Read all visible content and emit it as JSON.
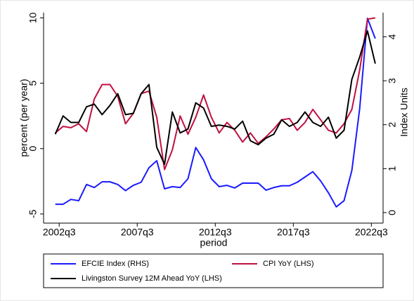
{
  "chart_data": {
    "type": "line",
    "x_label": "period",
    "y_label": "percent (per year)",
    "y2_label": "Index Units",
    "x": [
      169,
      171,
      173,
      175,
      177,
      179,
      181,
      183,
      185,
      187,
      189,
      191,
      193,
      195,
      197,
      199,
      201,
      203,
      205,
      207,
      209,
      211,
      213,
      215,
      217,
      219,
      221,
      223,
      225,
      227,
      229,
      231,
      233,
      235,
      237,
      239,
      241,
      243,
      245,
      247,
      249,
      251
    ],
    "xlim": [
      166,
      253
    ],
    "xticks": [
      {
        "value": 170,
        "label": "2002q3"
      },
      {
        "value": 190,
        "label": "2007q3"
      },
      {
        "value": 210,
        "label": "2012q3"
      },
      {
        "value": 230,
        "label": "2017q3"
      },
      {
        "value": 250,
        "label": "2022q3"
      }
    ],
    "ylim": [
      -5.7,
      10.4
    ],
    "yticks": [
      -5,
      0,
      5,
      10
    ],
    "y2lim": [
      -0.24,
      4.55
    ],
    "y2ticks": [
      0,
      1,
      2,
      3,
      4
    ],
    "legend": "bottom",
    "series": [
      {
        "name": "EFCIE Index (RHS)",
        "color": "#1a1aff",
        "axis": "y2",
        "values": [
          0.19,
          0.19,
          0.3,
          0.27,
          0.64,
          0.57,
          0.7,
          0.7,
          0.64,
          0.5,
          0.62,
          0.69,
          1.02,
          1.18,
          0.54,
          0.59,
          0.57,
          0.77,
          1.48,
          1.2,
          0.77,
          0.59,
          0.62,
          0.56,
          0.67,
          0.67,
          0.67,
          0.51,
          0.57,
          0.61,
          0.61,
          0.69,
          0.81,
          0.93,
          0.72,
          0.45,
          0.13,
          0.27,
          0.96,
          2.36,
          4.42,
          3.96
        ]
      },
      {
        "name": "CPI YoY (LHS)",
        "color": "#c0103f",
        "values": [
          1.2,
          1.7,
          1.6,
          1.9,
          1.3,
          3.8,
          4.9,
          4.9,
          4.0,
          1.9,
          2.7,
          4.2,
          4.4,
          2.4,
          -1.6,
          -0.1,
          2.5,
          1.1,
          2.4,
          4.1,
          2.4,
          1.2,
          2.0,
          1.4,
          0.5,
          1.2,
          0.4,
          0.9,
          1.5,
          2.2,
          2.3,
          1.4,
          2.0,
          3.0,
          2.2,
          1.4,
          1.2,
          1.9,
          3.0,
          6.0,
          9.9,
          10.0
        ]
      },
      {
        "name": "Livingston Survey 12M Ahead YoY (LHS)",
        "color": "#000000",
        "values": [
          1.1,
          2.5,
          2.0,
          2.0,
          3.2,
          3.4,
          2.6,
          3.3,
          4.2,
          2.6,
          2.7,
          4.2,
          4.9,
          0.1,
          -1.2,
          2.8,
          1.2,
          1.5,
          3.5,
          3.1,
          1.7,
          1.8,
          1.7,
          1.5,
          2.1,
          0.6,
          0.3,
          0.8,
          1.1,
          2.2,
          1.7,
          2.0,
          2.8,
          2.0,
          1.7,
          2.4,
          0.8,
          1.4,
          5.3,
          7.0,
          9.0,
          6.5
        ]
      }
    ]
  }
}
